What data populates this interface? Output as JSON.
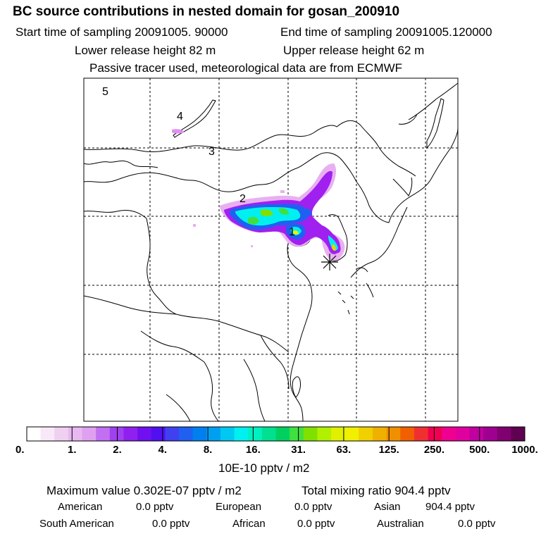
{
  "header": {
    "title": "BC  source contributions in nested domain for gosan_200910",
    "start_label": "Start time of sampling 20091005. 90000",
    "end_label": "End time of sampling 20091005.120000",
    "lower_label": "Lower release height   82 m",
    "upper_label": "Upper release height   62 m",
    "tracer_note": "Passive tracer used, meteorological data are from ECMWF"
  },
  "map": {
    "region_labels": [
      "5",
      "4",
      "3",
      "2",
      "1"
    ],
    "receptor_marker": "star-marker",
    "colors": {
      "low": "#e8b0f0",
      "mid_purple": "#a020f0",
      "cyan": "#00f0f0",
      "green": "#40e040",
      "yellow": "#f0f000"
    }
  },
  "colorbar": {
    "tick_labels": [
      "0.",
      "1.",
      "2.",
      "4.",
      "8.",
      "16.",
      "31.",
      "63.",
      "125.",
      "250.",
      "500.",
      "1000."
    ],
    "unit_label": "10E-10 pptv / m2",
    "colors": [
      "#ffffff",
      "#f8e8f8",
      "#f0d0f0",
      "#e8b8f0",
      "#e0a0f0",
      "#c070f0",
      "#a040f0",
      "#9020f0",
      "#7010f0",
      "#5010f0",
      "#4040f0",
      "#2060f0",
      "#0080f0",
      "#00a0f0",
      "#00c8f0",
      "#00f0f0",
      "#00f0c0",
      "#00e090",
      "#00d060",
      "#40e040",
      "#80e000",
      "#b0f000",
      "#e0f000",
      "#f0f000",
      "#f0d000",
      "#f0b000",
      "#f09000",
      "#f06000",
      "#f03030",
      "#f00050",
      "#f00090",
      "#e000a0",
      "#c000a0",
      "#a00090",
      "#800070",
      "#600050"
    ]
  },
  "stats": {
    "maximum": "Maximum value  0.302E-07 pptv / m2",
    "total": "Total mixing ratio      904.4 pptv",
    "american_label": "American",
    "american_value": "0.0 pptv",
    "european_label": "European",
    "european_value": "0.0 pptv",
    "asian_label": "Asian",
    "asian_value": "904.4 pptv",
    "south_american_label": "South American",
    "south_american_value": "0.0 pptv",
    "african_label": "African",
    "african_value": "0.0 pptv",
    "australian_label": "Australian",
    "australian_value": "0.0 pptv"
  }
}
